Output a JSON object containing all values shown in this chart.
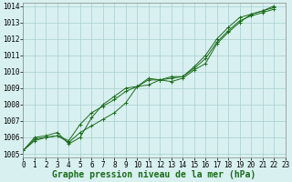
{
  "title": "Graphe pression niveau de la mer (hPa)",
  "bg_color": "#d8f0f0",
  "grid_color": "#aacece",
  "line_color": "#1a6b1a",
  "xlim": [
    0,
    23
  ],
  "ylim": [
    1004.8,
    1014.2
  ],
  "xticks": [
    0,
    1,
    2,
    3,
    4,
    5,
    6,
    7,
    8,
    9,
    10,
    11,
    12,
    13,
    14,
    15,
    16,
    17,
    18,
    19,
    20,
    21,
    22,
    23
  ],
  "yticks": [
    1005,
    1006,
    1007,
    1008,
    1009,
    1010,
    1011,
    1012,
    1013,
    1014
  ],
  "series": [
    [
      1005.2,
      1005.8,
      1006.0,
      1006.1,
      1005.7,
      1006.3,
      1006.7,
      1007.1,
      1007.5,
      1008.1,
      1009.1,
      1009.2,
      1009.5,
      1009.4,
      1009.6,
      1010.1,
      1010.5,
      1011.7,
      1012.4,
      1013.0,
      1013.5,
      1013.7,
      1013.9
    ],
    [
      1005.2,
      1005.9,
      1006.0,
      1006.1,
      1005.8,
      1006.8,
      1007.5,
      1007.9,
      1008.3,
      1008.8,
      1009.1,
      1009.5,
      1009.5,
      1009.6,
      1009.7,
      1010.2,
      1010.8,
      1011.8,
      1012.5,
      1013.1,
      1013.4,
      1013.6,
      1013.8
    ],
    [
      1005.2,
      1006.0,
      1006.1,
      1006.3,
      1005.6,
      1006.0,
      1007.2,
      1008.0,
      1008.5,
      1009.0,
      1009.1,
      1009.6,
      1009.5,
      1009.7,
      1009.7,
      1010.3,
      1011.0,
      1012.0,
      1012.7,
      1013.3,
      1013.5,
      1013.7,
      1014.0
    ]
  ],
  "x_start": 0,
  "title_fontsize": 7,
  "tick_fontsize": 5.5,
  "ylabel_fontsize": 6
}
